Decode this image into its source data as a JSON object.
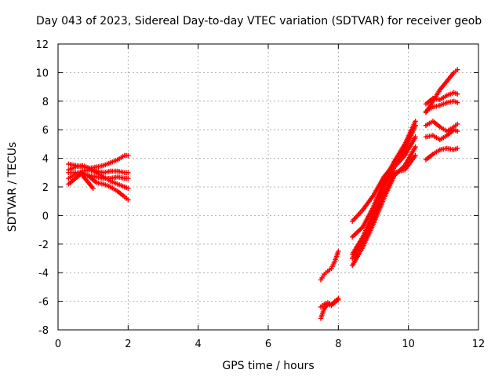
{
  "chart_data": {
    "type": "scatter",
    "title": "Day 043 of 2023, Sidereal Day-to-day VTEC variation (SDTVAR) for receiver geob",
    "xlabel": "GPS time / hours",
    "ylabel": "SDTVAR / TECUs",
    "xlim": [
      0,
      12
    ],
    "ylim": [
      -8,
      12
    ],
    "xticks": [
      0,
      2,
      4,
      6,
      8,
      10,
      12
    ],
    "yticks": [
      -8,
      -6,
      -4,
      -2,
      0,
      2,
      4,
      6,
      8,
      10,
      12
    ],
    "grid": true,
    "marker": "+",
    "color": "#ff0000",
    "series": [
      {
        "x": [
          0.3,
          0.5,
          0.7,
          0.9,
          1.1,
          1.3,
          1.5,
          1.7,
          1.9,
          2.0
        ],
        "y": [
          3.6,
          3.5,
          3.4,
          3.3,
          3.4,
          3.5,
          3.7,
          3.9,
          4.2,
          4.2
        ]
      },
      {
        "x": [
          0.3,
          0.5,
          0.7,
          0.9,
          1.1,
          1.3,
          1.5,
          1.7,
          1.9,
          2.0
        ],
        "y": [
          3.2,
          3.4,
          3.5,
          3.3,
          3.1,
          3.0,
          3.1,
          3.1,
          3.0,
          3.0
        ]
      },
      {
        "x": [
          0.3,
          0.5,
          0.7,
          0.9,
          1.1,
          1.3,
          1.5,
          1.7,
          1.9,
          2.0
        ],
        "y": [
          3.0,
          3.0,
          2.9,
          2.8,
          2.7,
          2.6,
          2.6,
          2.7,
          2.6,
          2.6
        ]
      },
      {
        "x": [
          0.3,
          0.5,
          0.7,
          0.9,
          1.1,
          1.3,
          1.5,
          1.7,
          1.9,
          2.0
        ],
        "y": [
          2.6,
          2.9,
          3.1,
          3.2,
          3.0,
          2.7,
          2.4,
          2.2,
          2.0,
          1.9
        ]
      },
      {
        "x": [
          0.3,
          0.5,
          0.7,
          0.9,
          1.1,
          1.3,
          1.5,
          1.7,
          1.9,
          2.0
        ],
        "y": [
          2.2,
          2.6,
          3.0,
          2.7,
          2.3,
          2.2,
          2.0,
          1.7,
          1.3,
          1.1
        ]
      },
      {
        "x": [
          0.7,
          0.9,
          1.0
        ],
        "y": [
          2.8,
          2.2,
          1.9
        ]
      },
      {
        "x": [
          7.5,
          7.6,
          7.7,
          7.8,
          7.9,
          8.0
        ],
        "y": [
          -4.5,
          -4.1,
          -3.9,
          -3.7,
          -3.2,
          -2.5
        ]
      },
      {
        "x": [
          7.5,
          7.6,
          7.7,
          7.8,
          7.9,
          8.0
        ],
        "y": [
          -7.2,
          -6.5,
          -6.2,
          -6.3,
          -6.0,
          -5.9
        ]
      },
      {
        "x": [
          7.5,
          7.6,
          7.7,
          7.8,
          7.9,
          8.0
        ],
        "y": [
          -6.4,
          -6.2,
          -6.1,
          -6.2,
          -6.1,
          -5.8
        ]
      },
      {
        "x": [
          8.4,
          8.7,
          9.0,
          9.3,
          9.6,
          9.9,
          10.2
        ],
        "y": [
          -0.4,
          0.4,
          1.4,
          2.7,
          3.6,
          4.6,
          6.3
        ]
      },
      {
        "x": [
          8.4,
          8.7,
          9.0,
          9.3,
          9.6,
          9.9,
          10.2
        ],
        "y": [
          -1.5,
          -0.8,
          0.6,
          2.4,
          3.8,
          5.0,
          6.6
        ]
      },
      {
        "x": [
          8.4,
          8.7,
          9.0,
          9.3,
          9.6,
          9.9,
          10.2
        ],
        "y": [
          -2.7,
          -1.5,
          0.2,
          2.0,
          3.4,
          4.2,
          5.5
        ]
      },
      {
        "x": [
          8.4,
          8.7,
          9.0,
          9.3,
          9.6,
          9.9,
          10.2
        ],
        "y": [
          -3.5,
          -2.2,
          -0.6,
          1.2,
          2.8,
          3.5,
          4.8
        ]
      },
      {
        "x": [
          8.4,
          8.7,
          9.0,
          9.3,
          9.6,
          9.9,
          10.2
        ],
        "y": [
          -3.0,
          -1.7,
          -0.2,
          1.5,
          3.0,
          3.2,
          4.2
        ]
      },
      {
        "x": [
          10.5,
          10.7,
          10.9,
          11.1,
          11.3,
          11.4
        ],
        "y": [
          7.2,
          8.0,
          8.8,
          9.4,
          10.0,
          10.2
        ]
      },
      {
        "x": [
          10.5,
          10.7,
          10.9,
          11.1,
          11.3,
          11.4
        ],
        "y": [
          7.8,
          8.2,
          8.1,
          8.4,
          8.6,
          8.5
        ]
      },
      {
        "x": [
          10.5,
          10.7,
          10.9,
          11.1,
          11.3,
          11.4
        ],
        "y": [
          7.3,
          7.6,
          7.7,
          7.9,
          8.0,
          7.9
        ]
      },
      {
        "x": [
          10.5,
          10.7,
          10.9,
          11.1,
          11.3,
          11.4
        ],
        "y": [
          6.3,
          6.6,
          6.2,
          5.9,
          6.2,
          6.4
        ]
      },
      {
        "x": [
          10.5,
          10.7,
          10.9,
          11.1,
          11.3,
          11.4
        ],
        "y": [
          5.5,
          5.6,
          5.3,
          5.6,
          6.0,
          5.9
        ]
      },
      {
        "x": [
          10.5,
          10.7,
          10.9,
          11.1,
          11.3,
          11.4
        ],
        "y": [
          3.9,
          4.3,
          4.6,
          4.7,
          4.6,
          4.7
        ]
      }
    ]
  }
}
